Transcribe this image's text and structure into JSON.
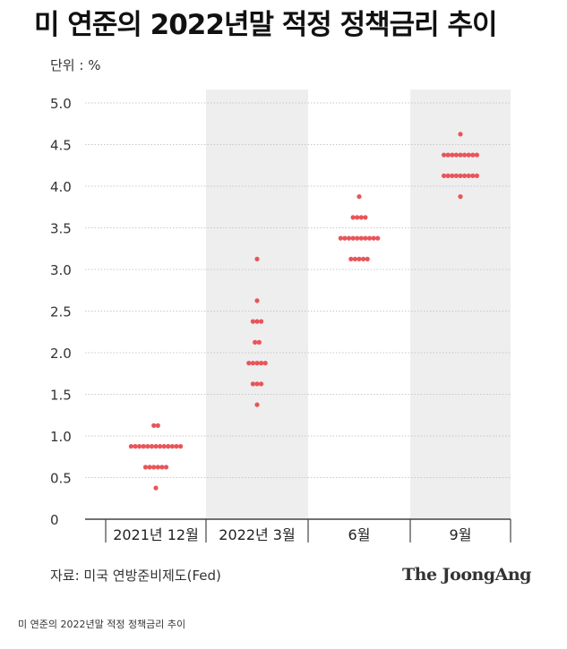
{
  "header": {
    "title": "미 연준의 2022년말 적정 정책금리 추이"
  },
  "footer": {
    "source": "자료: 미국 연방준비제도(Fed)",
    "brand": "The JoongAng",
    "caption": "미 연준의 2022년말 적정 정책금리 추이"
  },
  "colors": {
    "dot": "#e8555a",
    "band": "#eeeeee",
    "grid": "#c8c8c8",
    "axis": "#444444"
  },
  "chart_data": {
    "type": "scatter",
    "unit_label": "단위 : %",
    "ylim": [
      0,
      5.0
    ],
    "y_ticks": [
      "0",
      "0.5",
      "1.0",
      "1.5",
      "2.0",
      "2.5",
      "3.0",
      "3.5",
      "4.0",
      "4.5",
      "5.0"
    ],
    "categories": [
      "2021년 12월",
      "2022년 3월",
      "6월",
      "9월"
    ],
    "shaded_categories": [
      1,
      3
    ],
    "series": [
      {
        "category": "2021년 12월",
        "points": [
          {
            "y": 0.375,
            "count": 1
          },
          {
            "y": 0.625,
            "count": 6
          },
          {
            "y": 0.875,
            "count": 13
          },
          {
            "y": 1.125,
            "count": 2
          }
        ]
      },
      {
        "category": "2022년 3월",
        "points": [
          {
            "y": 1.375,
            "count": 1
          },
          {
            "y": 1.625,
            "count": 3
          },
          {
            "y": 1.875,
            "count": 5
          },
          {
            "y": 2.125,
            "count": 2
          },
          {
            "y": 2.375,
            "count": 3
          },
          {
            "y": 2.625,
            "count": 1
          },
          {
            "y": 3.125,
            "count": 1
          }
        ]
      },
      {
        "category": "6월",
        "points": [
          {
            "y": 3.125,
            "count": 5
          },
          {
            "y": 3.375,
            "count": 10
          },
          {
            "y": 3.625,
            "count": 4
          },
          {
            "y": 3.875,
            "count": 1
          }
        ]
      },
      {
        "category": "9월",
        "points": [
          {
            "y": 3.875,
            "count": 1
          },
          {
            "y": 4.125,
            "count": 9
          },
          {
            "y": 4.375,
            "count": 9
          },
          {
            "y": 4.625,
            "count": 1
          }
        ]
      }
    ]
  }
}
